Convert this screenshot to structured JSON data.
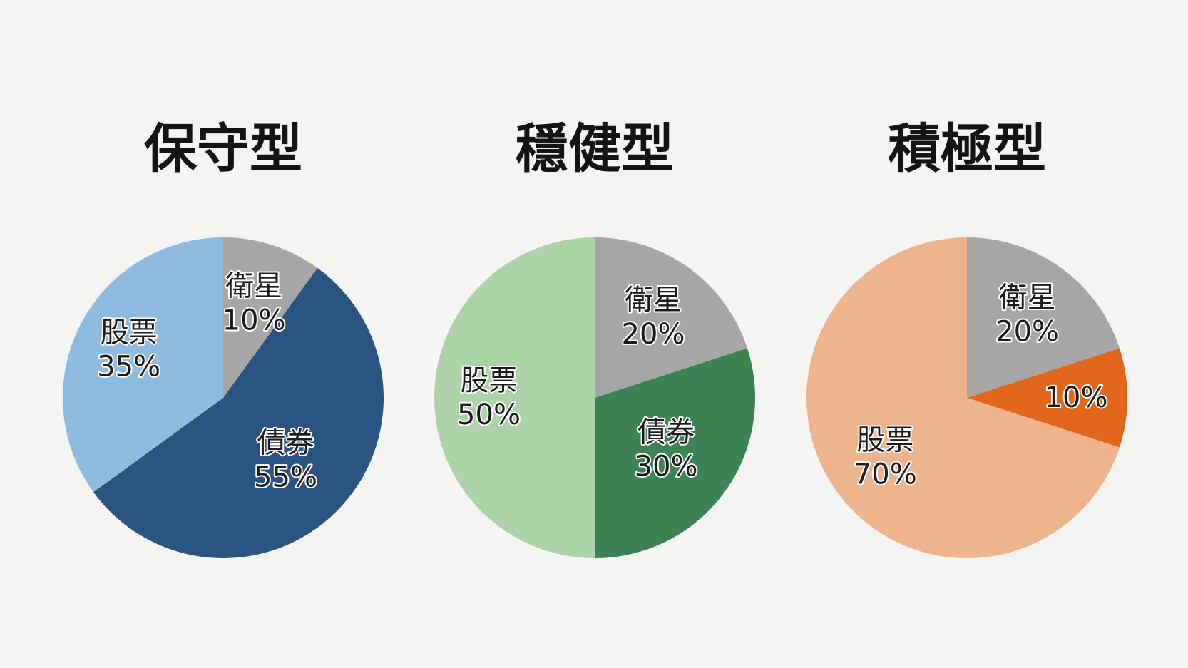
{
  "chart_data": [
    {
      "type": "pie",
      "title": "保守型",
      "slices": [
        {
          "label": "衛星",
          "value": 10,
          "value_label": "10%",
          "color": "#a6a6a6"
        },
        {
          "label": "債券",
          "value": 55,
          "value_label": "55%",
          "color": "#2a5582"
        },
        {
          "label": "股票",
          "value": 35,
          "value_label": "35%",
          "color": "#8fbcde"
        }
      ]
    },
    {
      "type": "pie",
      "title": "穩健型",
      "slices": [
        {
          "label": "衛星",
          "value": 20,
          "value_label": "20%",
          "color": "#a6a6a6"
        },
        {
          "label": "債券",
          "value": 30,
          "value_label": "30%",
          "color": "#3d8253"
        },
        {
          "label": "股票",
          "value": 50,
          "value_label": "50%",
          "color": "#acd3a8"
        }
      ]
    },
    {
      "type": "pie",
      "title": "積極型",
      "slices": [
        {
          "label": "衛星",
          "value": 20,
          "value_label": "20%",
          "color": "#a6a6a6"
        },
        {
          "label": "",
          "value": 10,
          "value_label": "10%",
          "color": "#e2661c"
        },
        {
          "label": "股票",
          "value": 70,
          "value_label": "70%",
          "color": "#edb48d"
        }
      ]
    }
  ]
}
